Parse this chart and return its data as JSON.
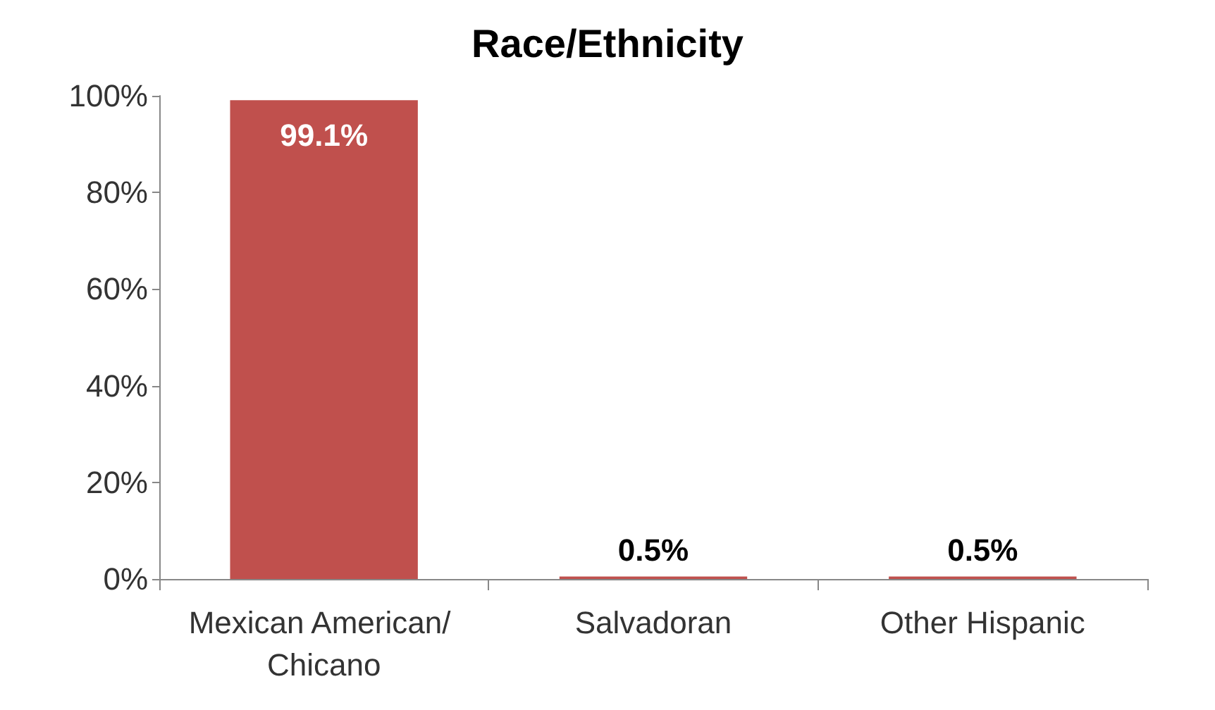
{
  "chart_data": {
    "type": "bar",
    "title": "Race/Ethnicity",
    "categories": [
      "Mexican American/ Chicano",
      "Salvadoran",
      "Other Hispanic"
    ],
    "values": [
      99.1,
      0.5,
      0.5
    ],
    "value_labels": [
      "99.1%",
      "0.5%",
      "0.5%"
    ],
    "color": "#c0504d",
    "ylim": [
      0,
      100
    ],
    "yticks": [
      {
        "value": 0,
        "label": "0%"
      },
      {
        "value": 20,
        "label": "20%"
      },
      {
        "value": 40,
        "label": "40%"
      },
      {
        "value": 60,
        "label": "60%"
      },
      {
        "value": 80,
        "label": "80%"
      },
      {
        "value": 100,
        "label": "100%"
      }
    ],
    "grid": false
  }
}
